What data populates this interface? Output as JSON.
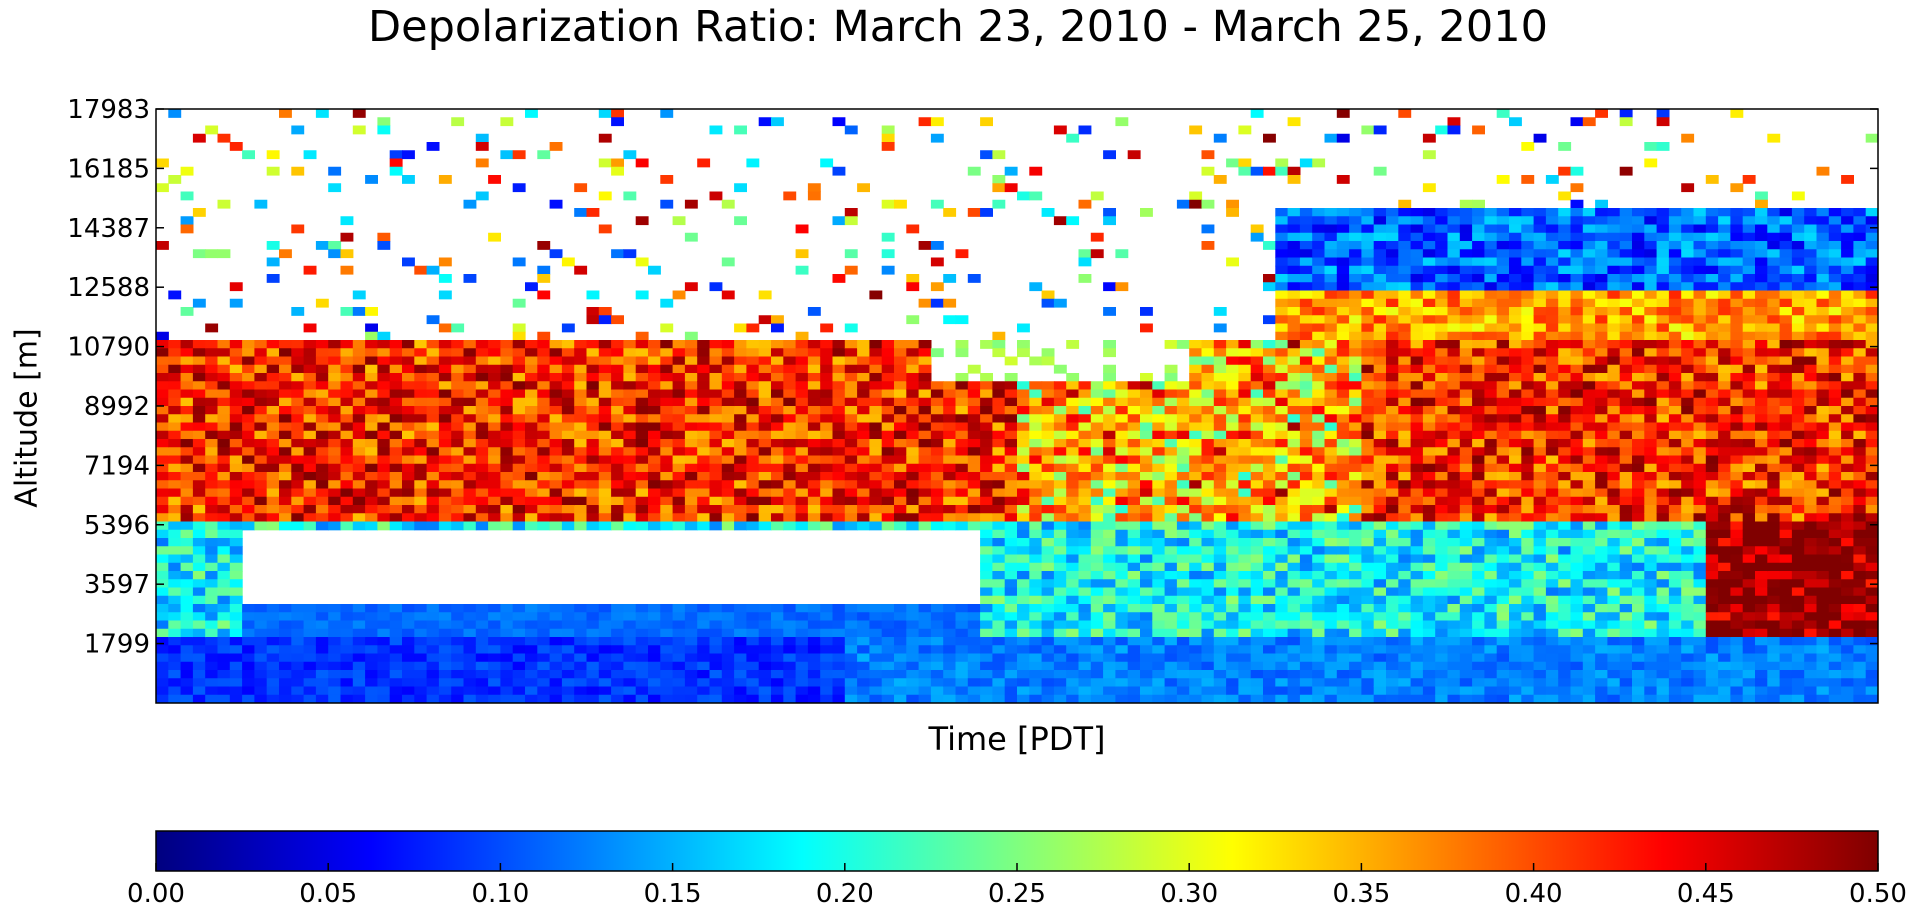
{
  "chart_data": {
    "type": "heatmap",
    "title": "Depolarization Ratio: March 23, 2010 - March 25, 2010",
    "xlabel": "Time [PDT]",
    "ylabel": "Altitude [m]",
    "y_ticks": [
      1799,
      3597,
      5396,
      7194,
      8992,
      10790,
      12588,
      14387,
      16185,
      17983
    ],
    "ylim": [
      0,
      17983
    ],
    "x_ticks": [],
    "colorbar": {
      "min": 0.0,
      "max": 0.5,
      "ticks": [
        "0.00",
        "0.05",
        "0.10",
        "0.15",
        "0.20",
        "0.25",
        "0.30",
        "0.35",
        "0.40",
        "0.45",
        "0.50"
      ],
      "colormap": "jet"
    },
    "colors": {
      "jet": [
        "#00007f",
        "#0000ff",
        "#007fff",
        "#00ffff",
        "#7fff7f",
        "#ffff00",
        "#ff7f00",
        "#ff0000",
        "#7f0000"
      ]
    },
    "layers_approx": [
      {
        "description_value": 0.08,
        "altitude_range_m": [
          0,
          2000
        ]
      },
      {
        "description_value": 0.42,
        "altitude_range_m": [
          5400,
          11000
        ]
      },
      {
        "description_value": 0.1,
        "altitude_range_m": [
          12000,
          15000
        ]
      }
    ]
  }
}
